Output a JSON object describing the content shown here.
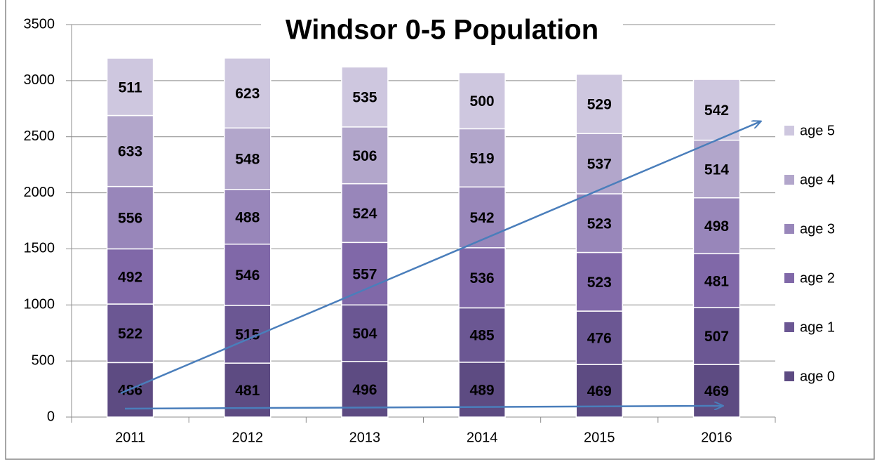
{
  "chart_data": {
    "type": "stacked_bar",
    "title": "Windsor 0-5 Population",
    "categories": [
      "2011",
      "2012",
      "2013",
      "2014",
      "2015",
      "2016"
    ],
    "series": [
      {
        "name": "age 0",
        "color": "#5d4b82",
        "label_color": "#ffffff",
        "values": [
          486,
          481,
          496,
          489,
          469,
          469
        ]
      },
      {
        "name": "age 1",
        "color": "#6b5793",
        "label_color": "#ffffff",
        "values": [
          522,
          515,
          504,
          485,
          476,
          507
        ]
      },
      {
        "name": "age 2",
        "color": "#8068a8",
        "label_color": "#ffffff",
        "values": [
          492,
          546,
          557,
          536,
          523,
          481
        ]
      },
      {
        "name": "age 3",
        "color": "#9886ba",
        "label_color": "#000000",
        "values": [
          556,
          488,
          524,
          542,
          523,
          498
        ]
      },
      {
        "name": "age 4",
        "color": "#b2a6cb",
        "label_color": "#000000",
        "values": [
          633,
          548,
          506,
          519,
          537,
          514
        ]
      },
      {
        "name": "age 5",
        "color": "#cec7df",
        "label_color": "#000000",
        "values": [
          511,
          623,
          535,
          500,
          529,
          542
        ]
      }
    ],
    "ylim": [
      0,
      3500
    ],
    "yticks": [
      0,
      500,
      1000,
      1500,
      2000,
      2500,
      3000,
      3500
    ],
    "grid": true,
    "legend": "right"
  }
}
